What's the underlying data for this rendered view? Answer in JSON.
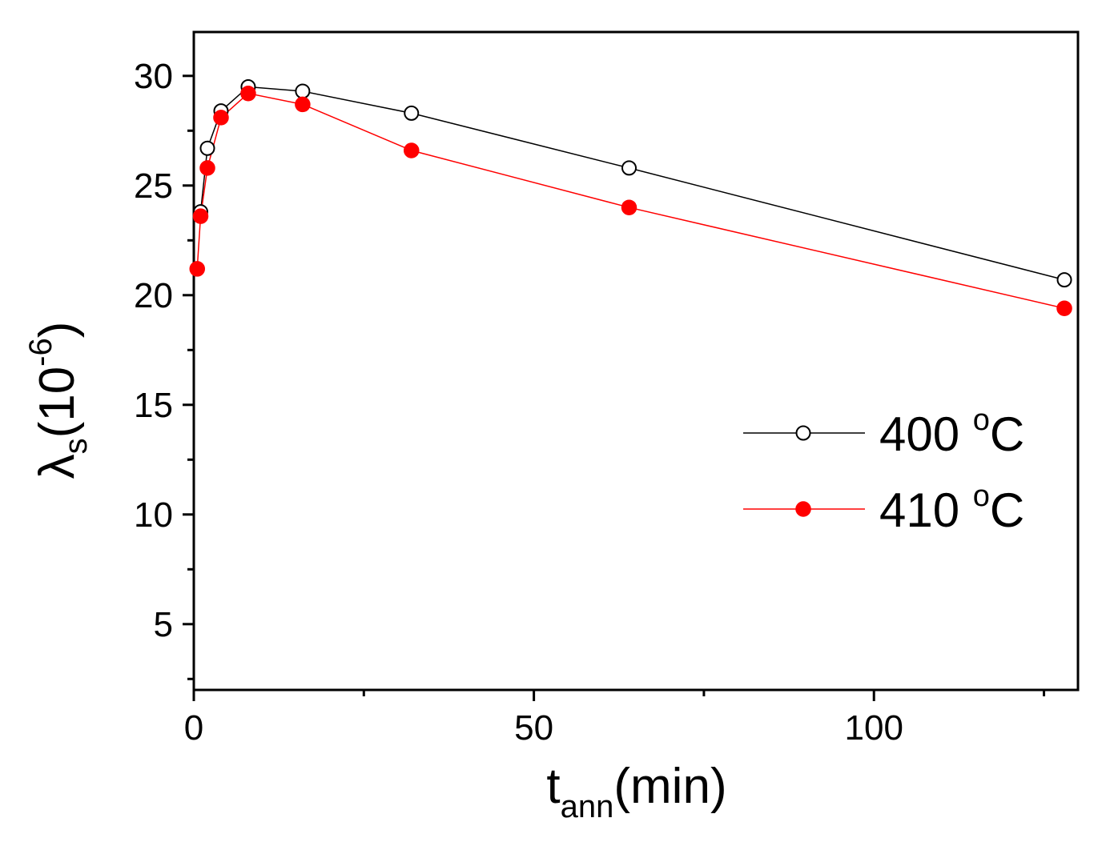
{
  "chart_data": {
    "type": "line",
    "xlabel": {
      "main": "t",
      "sub": "ann",
      "rest": "(min)"
    },
    "ylabel": {
      "main": "λ",
      "sub": "s",
      "open": "(10",
      "sup": "-6",
      "close": ")"
    },
    "xlim": [
      0,
      130
    ],
    "ylim": [
      2,
      32
    ],
    "x_ticks": [
      0,
      50,
      100
    ],
    "x_tick_labels": [
      "0",
      "50",
      "100"
    ],
    "x_minor_ticks": [
      25,
      75,
      125
    ],
    "y_ticks": [
      5,
      10,
      15,
      20,
      25,
      30
    ],
    "y_tick_labels": [
      "5",
      "10",
      "15",
      "20",
      "25",
      "30"
    ],
    "y_minor_ticks": [
      2.5,
      7.5,
      12.5,
      17.5,
      22.5,
      27.5
    ],
    "grid": false,
    "legend_position": "center-right",
    "series": [
      {
        "name": "400",
        "unit_sup": "o",
        "unit": "C",
        "marker": "open-circle",
        "color": "#000000",
        "x": [
          1,
          2,
          4,
          8,
          16,
          32,
          64,
          128
        ],
        "y": [
          23.8,
          26.7,
          28.4,
          29.5,
          29.3,
          28.3,
          25.8,
          20.7
        ]
      },
      {
        "name": "410",
        "unit_sup": "o",
        "unit": "C",
        "marker": "filled-circle",
        "color": "#ff0000",
        "x": [
          0.5,
          1,
          2,
          4,
          8,
          16,
          32,
          64,
          128
        ],
        "y": [
          21.2,
          23.6,
          25.8,
          28.1,
          29.2,
          28.7,
          26.6,
          24.0,
          19.4
        ]
      }
    ]
  }
}
